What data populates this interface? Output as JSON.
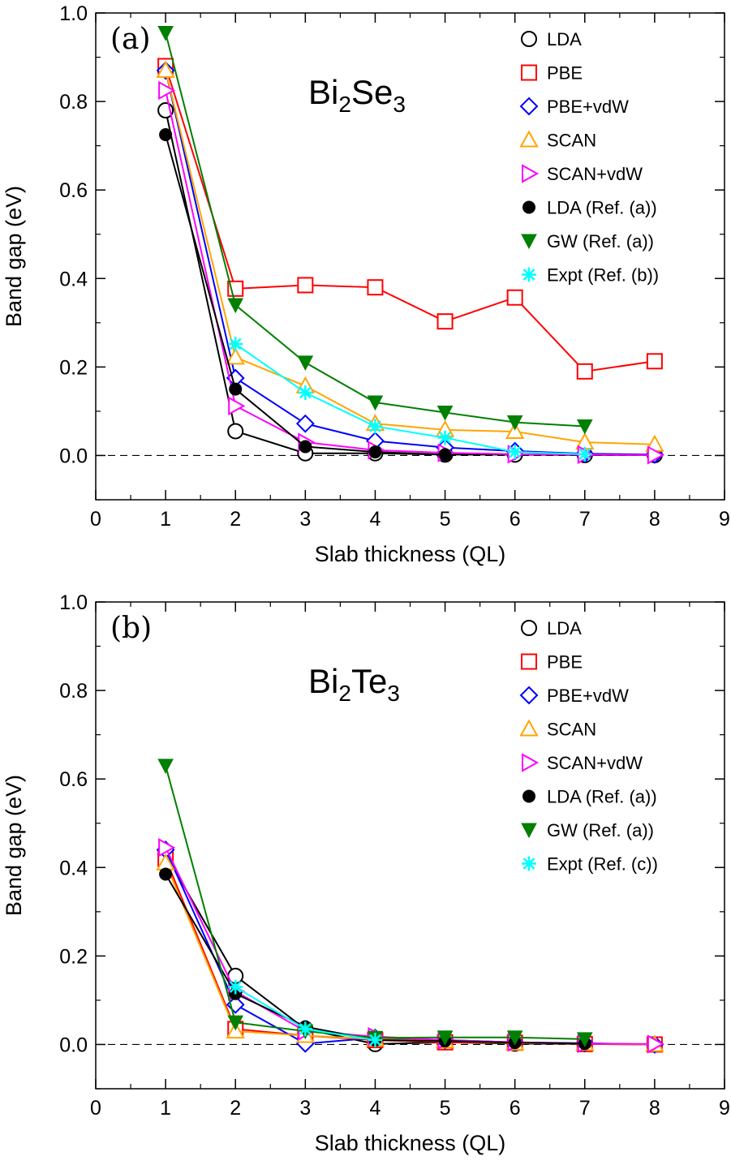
{
  "chart_data": [
    {
      "type": "line",
      "panel_label": "(a)",
      "compound": {
        "parts": [
          {
            "t": "Bi",
            "sub": false
          },
          {
            "t": "2",
            "sub": true
          },
          {
            "t": "Se",
            "sub": false
          },
          {
            "t": "3",
            "sub": true
          }
        ]
      },
      "xlabel": "Slab thickness (QL)",
      "ylabel": "Band gap (eV)",
      "xlim": [
        0,
        9
      ],
      "ylim": [
        -0.1,
        1.0
      ],
      "xticks": [
        "0",
        "1",
        "2",
        "3",
        "4",
        "5",
        "6",
        "7",
        "8",
        "9"
      ],
      "yticks": [
        "0.0",
        "0.2",
        "0.4",
        "0.6",
        "0.8",
        "1.0"
      ],
      "zero_line": true,
      "legend_position": "top-right",
      "series": [
        {
          "name": "LDA",
          "color": "#000000",
          "marker": "circle-open",
          "x": [
            1,
            2,
            3,
            4,
            5,
            6,
            7,
            8
          ],
          "values": [
            0.78,
            0.055,
            0.005,
            0.005,
            0.002,
            0.002,
            0.001,
            0.001
          ]
        },
        {
          "name": "PBE",
          "color": "#ff0000",
          "marker": "square-open",
          "x": [
            1,
            2,
            3,
            4,
            5,
            6,
            7,
            8
          ],
          "values": [
            0.88,
            0.377,
            0.385,
            0.38,
            0.303,
            0.357,
            0.19,
            0.213
          ]
        },
        {
          "name": "PBE+vdW",
          "color": "#0000ff",
          "marker": "diamond-open",
          "x": [
            1,
            2,
            3,
            4,
            5,
            6,
            7,
            8
          ],
          "values": [
            0.87,
            0.175,
            0.072,
            0.033,
            0.018,
            0.01,
            0.004,
            0.002
          ]
        },
        {
          "name": "SCAN",
          "color": "#ffa500",
          "marker": "triangle-up-open",
          "x": [
            1,
            2,
            3,
            4,
            5,
            6,
            7,
            8
          ],
          "values": [
            0.87,
            0.222,
            0.157,
            0.072,
            0.058,
            0.054,
            0.03,
            0.025
          ]
        },
        {
          "name": "SCAN+vdW",
          "color": "#ff00ff",
          "marker": "triangle-right-open",
          "x": [
            1,
            2,
            3,
            4,
            5,
            6,
            7,
            8
          ],
          "values": [
            0.825,
            0.112,
            0.03,
            0.012,
            0.006,
            0.003,
            0.002,
            0.001
          ]
        },
        {
          "name": "LDA (Ref. (a))",
          "color": "#000000",
          "marker": "circle-filled",
          "x": [
            1,
            2,
            3,
            4,
            5
          ],
          "values": [
            0.725,
            0.15,
            0.02,
            0.008,
            0.002
          ]
        },
        {
          "name": "GW (Ref. (a))",
          "color": "#008000",
          "marker": "triangle-down-filled",
          "x": [
            1,
            2,
            3,
            4,
            5,
            6,
            7
          ],
          "values": [
            0.955,
            0.34,
            0.21,
            0.12,
            0.097,
            0.075,
            0.066
          ]
        },
        {
          "name": "Expt (Ref. (b))",
          "color": "#00ffff",
          "marker": "star",
          "x": [
            2,
            3,
            4,
            5,
            6,
            7
          ],
          "values": [
            0.252,
            0.142,
            0.066,
            0.04,
            0.008,
            0.003
          ]
        }
      ]
    },
    {
      "type": "line",
      "panel_label": "(b)",
      "compound": {
        "parts": [
          {
            "t": "Bi",
            "sub": false
          },
          {
            "t": "2",
            "sub": true
          },
          {
            "t": "Te",
            "sub": false
          },
          {
            "t": "3",
            "sub": true
          }
        ]
      },
      "xlabel": "Slab thickness (QL)",
      "ylabel": "Band gap (eV)",
      "xlim": [
        0,
        9
      ],
      "ylim": [
        -0.1,
        1.0
      ],
      "xticks": [
        "0",
        "1",
        "2",
        "3",
        "4",
        "5",
        "6",
        "7",
        "8",
        "9"
      ],
      "yticks": [
        "0.0",
        "0.2",
        "0.4",
        "0.6",
        "0.8",
        "1.0"
      ],
      "zero_line": true,
      "legend_position": "top-right",
      "series": [
        {
          "name": "LDA",
          "color": "#000000",
          "marker": "circle-open",
          "x": [
            1,
            2,
            3,
            4,
            5,
            6,
            7,
            8
          ],
          "values": [
            0.43,
            0.155,
            0.035,
            0.001,
            0.005,
            0.002,
            0.001,
            0.0
          ]
        },
        {
          "name": "PBE",
          "color": "#ff0000",
          "marker": "square-open",
          "x": [
            1,
            2,
            3,
            4,
            5,
            6,
            7,
            8
          ],
          "values": [
            0.42,
            0.035,
            0.02,
            0.01,
            0.005,
            0.004,
            0.001,
            0.0
          ]
        },
        {
          "name": "PBE+vdW",
          "color": "#0000ff",
          "marker": "diamond-open",
          "x": [
            1,
            2,
            3,
            4,
            5,
            6,
            7,
            8
          ],
          "values": [
            0.44,
            0.09,
            0.002,
            0.015,
            0.01,
            0.005,
            0.003,
            0.0
          ]
        },
        {
          "name": "SCAN",
          "color": "#ffa500",
          "marker": "triangle-up-open",
          "x": [
            1,
            2,
            3,
            4,
            5,
            6,
            7,
            8
          ],
          "values": [
            0.41,
            0.03,
            0.02,
            0.012,
            0.008,
            0.003,
            0.002,
            0.0
          ]
        },
        {
          "name": "SCAN+vdW",
          "color": "#ff00ff",
          "marker": "triangle-right-open",
          "x": [
            1,
            2,
            3,
            4,
            5,
            6,
            7,
            8
          ],
          "values": [
            0.445,
            0.12,
            0.03,
            0.018,
            0.01,
            0.005,
            0.002,
            0.001
          ]
        },
        {
          "name": "LDA (Ref. (a))",
          "color": "#000000",
          "marker": "circle-filled",
          "x": [
            1,
            2,
            3,
            4,
            5,
            6,
            7
          ],
          "values": [
            0.385,
            0.115,
            0.04,
            0.01,
            0.008,
            0.004,
            0.002
          ]
        },
        {
          "name": "GW (Ref. (a))",
          "color": "#008000",
          "marker": "triangle-down-filled",
          "x": [
            1,
            2,
            3,
            4,
            5,
            6,
            7
          ],
          "values": [
            0.63,
            0.05,
            0.03,
            0.015,
            0.016,
            0.016,
            0.012
          ]
        },
        {
          "name": "Expt (Ref. (c))",
          "color": "#00ffff",
          "marker": "star",
          "x": [
            2,
            3,
            4
          ],
          "values": [
            0.13,
            0.035,
            0.01
          ]
        }
      ]
    }
  ]
}
